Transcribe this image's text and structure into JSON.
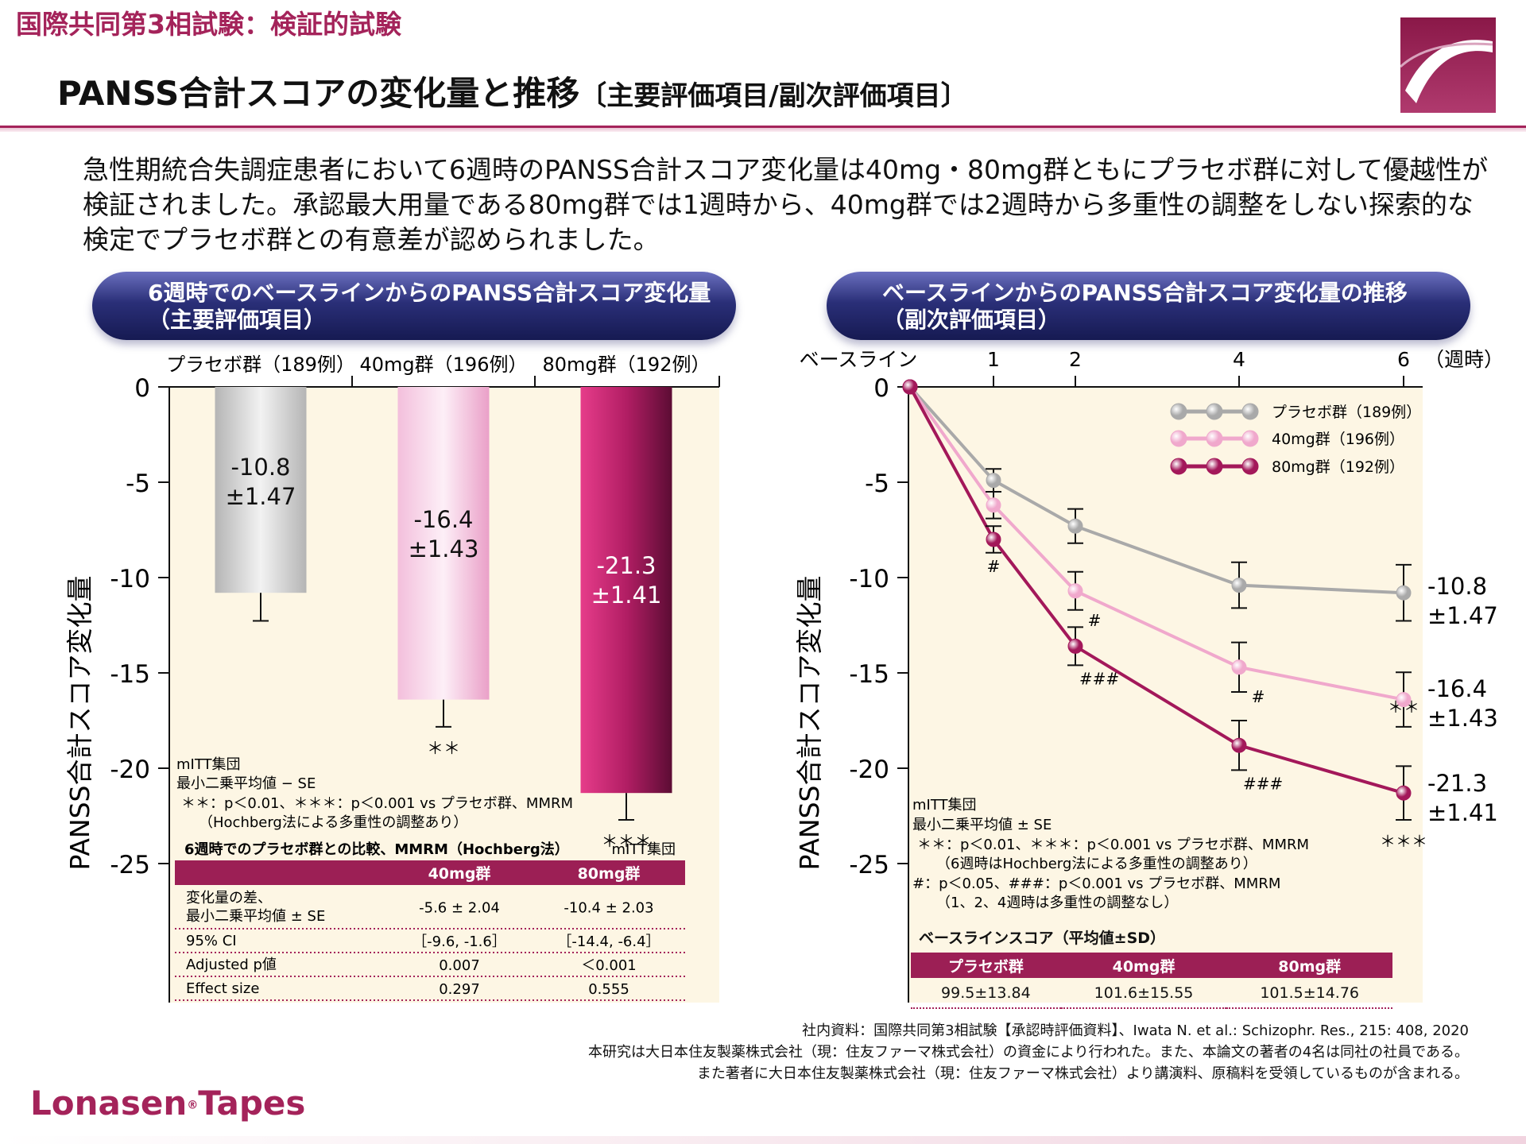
{
  "header": {
    "supertitle": "国際共同第3相試験：検証的試験",
    "title": "PANSS合計スコアの変化量と推移",
    "title_suffix": "〔主要評価項目/副次評価項目〕"
  },
  "summary": "急性期統合失調症患者において6週時のPANSS合計スコア変化量は40mg・80mg群ともにプラセボ群に対して優越性が検証されました。承認最大用量である80mg群では1週時から、40mg群では2週時から多重性の調整をしない探索的な検定でプラセボ群との有意差が認められました。",
  "left_panel": {
    "pill_line1": "6週時でのベースラインからのPANSS合計スコア変化量",
    "pill_line2": "（主要評価項目）",
    "notes": [
      "mITT集団",
      "最小二乗平均値 − SE",
      "＊＊：p＜0.01、＊＊＊：p＜0.001 vs プラセボ群、MMRM",
      "（Hochberg法による多重性の調整あり）"
    ],
    "table": {
      "title": "6週時でのプラセボ群との比較、MMRM（Hochberg法）",
      "note": "mITT集団",
      "columns": [
        "",
        "40mg群",
        "80mg群"
      ],
      "rows": [
        {
          "label": "変化量の差、\n最小二乗平均値 ± SE",
          "v40": "-5.6 ± 2.04",
          "v80": "-10.4 ± 2.03"
        },
        {
          "label": "95% CI",
          "v40": "［-9.6, -1.6］",
          "v80": "［-14.4, -6.4］"
        },
        {
          "label": "Adjusted p値",
          "v40": "0.007",
          "v80": "＜0.001"
        },
        {
          "label": "Effect size",
          "v40": "0.297",
          "v80": "0.555"
        }
      ]
    }
  },
  "right_panel": {
    "pill_line1": "ベースラインからのPANSS合計スコア変化量の推移",
    "pill_line2": "（副次評価項目）",
    "notes": [
      "mITT集団",
      "最小二乗平均値 ± SE",
      "＊＊：p＜0.01、＊＊＊：p＜0.001 vs プラセボ群、MMRM",
      "（6週時はHochberg法による多重性の調整あり）",
      "#：p＜0.05、###：p＜0.001 vs プラセボ群、MMRM",
      "（1、2、4週時は多重性の調整なし）"
    ],
    "baseline_table": {
      "title": "ベースラインスコア（平均値±SD）",
      "columns": [
        "プラセボ群",
        "40mg群",
        "80mg群"
      ],
      "values": [
        "99.5±13.84",
        "101.6±15.55",
        "101.5±14.76"
      ]
    }
  },
  "chart_data": [
    {
      "type": "bar",
      "categories": [
        "プラセボ群（189例）",
        "40mg群（196例）",
        "80mg群（192例）"
      ],
      "values": [
        -10.8,
        -16.4,
        -21.3
      ],
      "se": [
        1.47,
        1.43,
        1.41
      ],
      "value_labels": [
        [
          "-10.8",
          "±1.47"
        ],
        [
          "-16.4",
          "±1.43"
        ],
        [
          "-21.3",
          "±1.41"
        ]
      ],
      "significance": [
        "",
        "＊＊",
        "＊＊＊"
      ],
      "ylabel": "PANSS合計スコア変化量",
      "ylim": [
        -25,
        0
      ],
      "yticks": [
        0,
        -5,
        -10,
        -15,
        -20,
        -25
      ],
      "colors": [
        "#c9c9c9",
        "#f2b4d6",
        "#a3185a"
      ]
    },
    {
      "type": "line",
      "x": [
        0,
        1,
        2,
        4,
        6
      ],
      "x_tick_labels": [
        "ベースライン",
        "1",
        "2",
        "4",
        "6"
      ],
      "x_unit": "（週時）",
      "ylabel": "PANSS合計スコア変化量",
      "ylim": [
        -25,
        0
      ],
      "yticks": [
        0,
        -5,
        -10,
        -15,
        -20,
        -25
      ],
      "legend_position": "top-right",
      "series": [
        {
          "name": "プラセボ群（189例）",
          "color": "#a9a9a9",
          "values": [
            0,
            -4.9,
            -7.3,
            -10.4,
            -10.8
          ],
          "se": [
            0,
            0.6,
            0.9,
            1.2,
            1.47
          ],
          "marks": [
            "",
            "",
            "",
            "",
            ""
          ]
        },
        {
          "name": "40mg群（196例）",
          "color": "#f0a8cc",
          "values": [
            0,
            -6.2,
            -10.7,
            -14.7,
            -16.4
          ],
          "se": [
            0,
            0.7,
            1.0,
            1.3,
            1.43
          ],
          "marks": [
            "",
            "",
            "#",
            "#",
            "＊＊"
          ]
        },
        {
          "name": "80mg群（192例）",
          "color": "#a3185a",
          "values": [
            0,
            -8.0,
            -13.6,
            -18.8,
            -21.3
          ],
          "se": [
            0,
            0.7,
            1.0,
            1.3,
            1.41
          ],
          "marks": [
            "",
            "#",
            "###",
            "###",
            "＊＊＊"
          ]
        }
      ],
      "end_labels": [
        [
          "-10.8",
          "±1.47"
        ],
        [
          "-16.4",
          "±1.43"
        ],
        [
          "-21.3",
          "±1.41"
        ]
      ]
    }
  ],
  "footnote": {
    "line1": "社内資料：国際共同第3相試験【承認時評価資料】、Iwata N. et al.: Schizophr. Res., 215: 408, 2020",
    "line2": "本研究は大日本住友製薬株式会社（現：住友ファーマ株式会社）の資金により行われた。また、本論文の著者の4名は同社の社員である。",
    "line3": "また著者に大日本住友製薬株式会社（現：住友ファーマ株式会社）より講演料、原稿料を受領しているものが含まれる。"
  },
  "brand": {
    "name1": "Lonasen",
    "reg": "®",
    "name2": "Tapes"
  }
}
